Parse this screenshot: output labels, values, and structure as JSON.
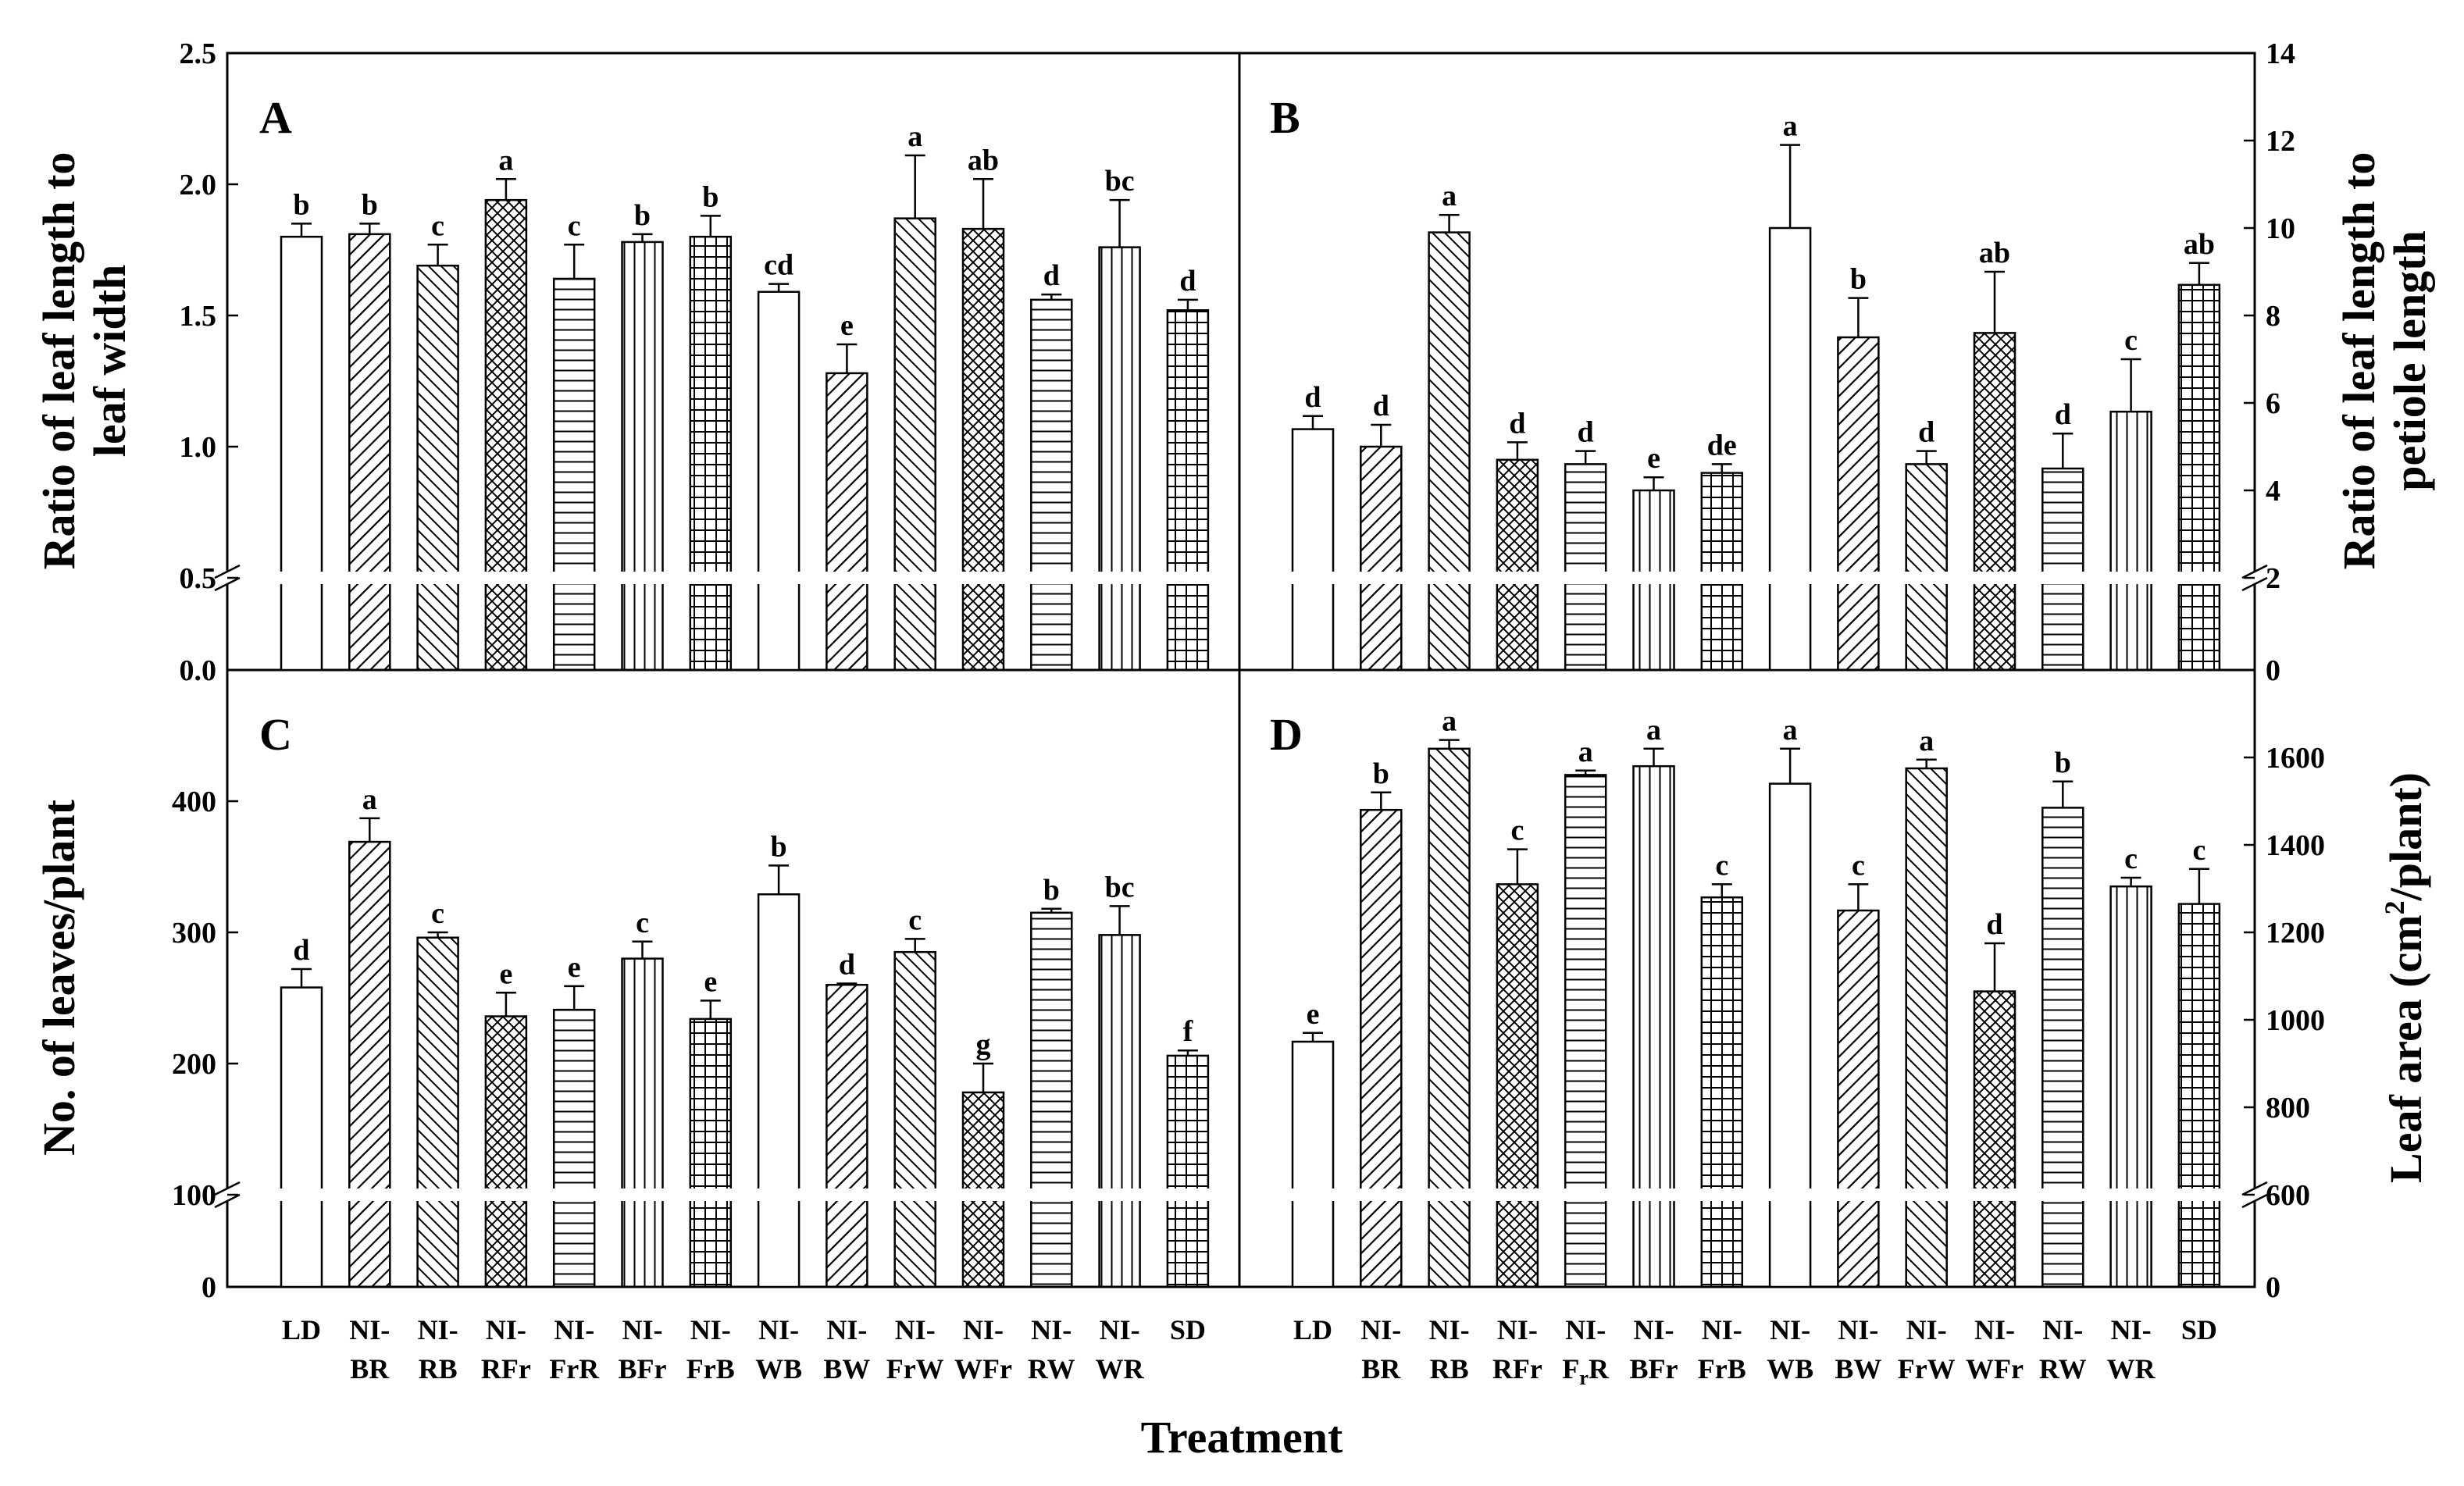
{
  "figure": {
    "xlabel": "Treatment"
  },
  "chart_data": [
    {
      "type": "bar",
      "panel": "A",
      "ylabel_lines": [
        "Ratio of leaf length to",
        "leaf width"
      ],
      "ylim": [
        0,
        2.5
      ],
      "axis_break": [
        0.5,
        0.5
      ],
      "yticks": [
        "0.0",
        "0.5",
        "1.0",
        "1.5",
        "2.0",
        "2.5"
      ],
      "categories": [
        "LD",
        "NI-BR",
        "NI-RB",
        "NI-RFr",
        "NI-FrR",
        "NI-BFr",
        "NI-FrB",
        "NI-WB",
        "NI-BW",
        "NI-FrW",
        "NI-WFr",
        "NI-RW",
        "NI-WR",
        "SD"
      ],
      "values": [
        1.8,
        1.81,
        1.69,
        1.94,
        1.64,
        1.78,
        1.8,
        1.59,
        1.28,
        1.87,
        1.83,
        1.56,
        1.76,
        1.52
      ],
      "errors": [
        0.05,
        0.04,
        0.08,
        0.08,
        0.13,
        0.03,
        0.08,
        0.03,
        0.11,
        0.24,
        0.19,
        0.02,
        0.18,
        0.04
      ],
      "sig": [
        "b",
        "b",
        "c",
        "a",
        "c",
        "b",
        "b",
        "cd",
        "e",
        "a",
        "ab",
        "d",
        "bc",
        "d"
      ]
    },
    {
      "type": "bar",
      "panel": "B",
      "ylabel_lines": [
        "Ratio of leaf length to",
        "petiole length"
      ],
      "ylim": [
        0,
        14
      ],
      "axis_break": [
        2,
        2
      ],
      "yticks": [
        "0",
        "2",
        "4",
        "6",
        "8",
        "10",
        "12",
        "14"
      ],
      "categories": [
        "LD",
        "NI-BR",
        "NI-RB",
        "NI-RFr",
        "NI-FrR",
        "NI-BFr",
        "NI-FrB",
        "NI-WB",
        "NI-BW",
        "NI-FrW",
        "NI-WFr",
        "NI-RW",
        "NI-WR",
        "SD"
      ],
      "values": [
        5.4,
        5.0,
        9.9,
        4.7,
        4.6,
        4.0,
        4.4,
        10.0,
        7.5,
        4.6,
        7.6,
        4.5,
        5.8,
        8.7
      ],
      "errors": [
        0.3,
        0.5,
        0.4,
        0.4,
        0.3,
        0.3,
        0.2,
        1.9,
        0.9,
        0.3,
        1.4,
        0.8,
        1.2,
        0.5
      ],
      "sig": [
        "d",
        "d",
        "a",
        "d",
        "d",
        "e",
        "de",
        "a",
        "b",
        "d",
        "ab",
        "d",
        "c",
        "ab"
      ]
    },
    {
      "type": "bar",
      "panel": "C",
      "ylabel_lines": [
        "No. of leaves/plant"
      ],
      "ylim": [
        0,
        500
      ],
      "axis_break": [
        100,
        100
      ],
      "yticks": [
        "0",
        "100",
        "200",
        "300",
        "400"
      ],
      "categories": [
        "LD",
        "NI-BR",
        "NI-RB",
        "NI-RFr",
        "NI-FrR",
        "NI-BFr",
        "NI-FrB",
        "NI-WB",
        "NI-BW",
        "NI-FrW",
        "NI-WFr",
        "NI-RW",
        "NI-WR",
        "SD"
      ],
      "values": [
        258,
        369,
        296,
        236,
        241,
        280,
        234,
        329,
        260,
        285,
        178,
        315,
        298,
        206
      ],
      "errors": [
        14,
        18,
        4,
        18,
        18,
        13,
        14,
        22,
        1,
        10,
        22,
        3,
        22,
        4
      ],
      "sig": [
        "d",
        "a",
        "c",
        "e",
        "e",
        "c",
        "e",
        "b",
        "d",
        "c",
        "g",
        "b",
        "bc",
        "f"
      ]
    },
    {
      "type": "bar",
      "panel": "D",
      "ylabel_html": [
        "Leaf area (cm",
        "2",
        "/plant)"
      ],
      "ylim": [
        0,
        1800
      ],
      "axis_break": [
        600,
        600
      ],
      "yticks": [
        "0",
        "600",
        "800",
        "1000",
        "1200",
        "1400",
        "1600"
      ],
      "categories": [
        "LD",
        "NI-BR",
        "NI-RB",
        "NI-RFr",
        "NI-FrR",
        "NI-BFr",
        "NI-FrB",
        "NI-WB",
        "NI-BW",
        "NI-FrW",
        "NI-WFr",
        "NI-RW",
        "NI-WR",
        "SD"
      ],
      "values": [
        950,
        1480,
        1620,
        1310,
        1560,
        1580,
        1280,
        1540,
        1250,
        1575,
        1065,
        1485,
        1305,
        1265
      ],
      "errors": [
        20,
        40,
        20,
        80,
        10,
        40,
        30,
        80,
        60,
        20,
        110,
        60,
        20,
        80
      ],
      "sig": [
        "e",
        "b",
        "a",
        "c",
        "a",
        "a",
        "c",
        "a",
        "c",
        "a",
        "d",
        "b",
        "c",
        "c"
      ]
    }
  ],
  "x_tick_labels": [
    [
      "LD"
    ],
    [
      "NI-",
      "BR"
    ],
    [
      "NI-",
      "RB"
    ],
    [
      "NI-",
      "RFr"
    ],
    [
      "NI-",
      "FrR"
    ],
    [
      "NI-",
      "BFr"
    ],
    [
      "NI-",
      "FrB"
    ],
    [
      "NI-",
      "WB"
    ],
    [
      "NI-",
      "BW"
    ],
    [
      "NI-",
      "FrW"
    ],
    [
      "NI-",
      "WFr"
    ],
    [
      "NI-",
      "RW"
    ],
    [
      "NI-",
      "WR"
    ],
    [
      "SD"
    ]
  ],
  "x_tick_labels_D": [
    [
      "LD"
    ],
    [
      "NI-",
      "BR"
    ],
    [
      "NI-",
      "RB"
    ],
    [
      "NI-",
      "RFr"
    ],
    [
      "NI-",
      "F",
      "r",
      "R"
    ],
    [
      "NI-",
      "BFr"
    ],
    [
      "NI-",
      "FrB"
    ],
    [
      "NI-",
      "WB"
    ],
    [
      "NI-",
      "BW"
    ],
    [
      "NI-",
      "FrW"
    ],
    [
      "NI-",
      "WFr"
    ],
    [
      "NI-",
      "RW"
    ],
    [
      "NI-",
      "WR"
    ],
    [
      "SD"
    ]
  ]
}
